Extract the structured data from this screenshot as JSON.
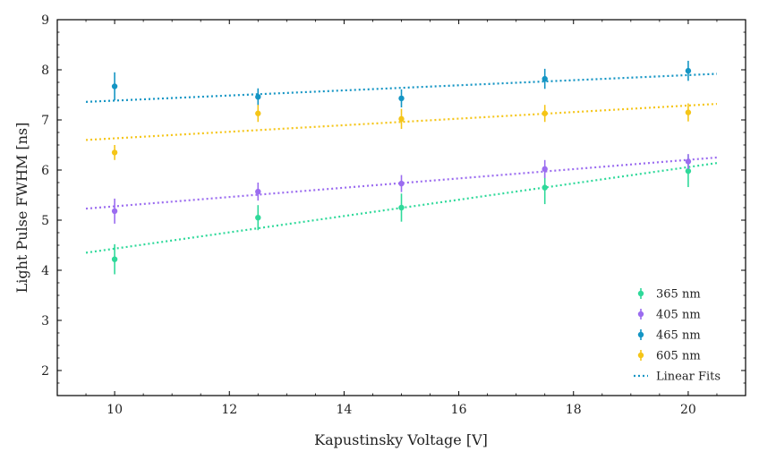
{
  "chart_data": {
    "type": "scatter",
    "title": "",
    "xlabel": "Kapustinsky Voltage [V]",
    "ylabel": "Light Pulse FWHM [ns]",
    "xlim": [
      9.0,
      21.0
    ],
    "ylim": [
      1.5,
      9.0
    ],
    "xticks": [
      10,
      12,
      14,
      16,
      18,
      20
    ],
    "yticks": [
      2,
      3,
      4,
      5,
      6,
      7,
      8,
      9
    ],
    "grid": false,
    "legend_position": "lower-right",
    "series": [
      {
        "name": "365 nm",
        "color": "#2fd99a",
        "x": [
          10,
          12.5,
          15,
          17.5,
          20
        ],
        "y": [
          4.22,
          5.05,
          5.25,
          5.65,
          5.98
        ],
        "yerr": [
          0.3,
          0.25,
          0.28,
          0.33,
          0.32
        ],
        "fit": {
          "x": [
            9.5,
            20.5
          ],
          "y": [
            4.35,
            6.14
          ]
        }
      },
      {
        "name": "405 nm",
        "color": "#9b6cf0",
        "x": [
          10,
          12.5,
          15,
          17.5,
          20
        ],
        "y": [
          5.18,
          5.57,
          5.73,
          6.02,
          6.17
        ],
        "yerr": [
          0.25,
          0.18,
          0.17,
          0.18,
          0.15
        ],
        "fit": {
          "x": [
            9.5,
            20.5
          ],
          "y": [
            5.23,
            6.25
          ]
        }
      },
      {
        "name": "465 nm",
        "color": "#1495c4",
        "x": [
          10,
          12.5,
          15,
          17.5,
          20
        ],
        "y": [
          7.67,
          7.46,
          7.43,
          7.82,
          7.98
        ],
        "yerr": [
          0.28,
          0.17,
          0.18,
          0.2,
          0.2
        ],
        "fit": {
          "x": [
            9.5,
            20.5
          ],
          "y": [
            7.36,
            7.92
          ]
        }
      },
      {
        "name": "605 nm",
        "color": "#f5c518",
        "x": [
          10,
          12.5,
          15,
          17.5,
          20
        ],
        "y": [
          6.35,
          7.13,
          7.02,
          7.13,
          7.15
        ],
        "yerr": [
          0.15,
          0.17,
          0.2,
          0.17,
          0.18
        ],
        "fit": {
          "x": [
            9.5,
            20.5
          ],
          "y": [
            6.6,
            7.32
          ]
        }
      }
    ],
    "fit_legend_label": "Linear Fits",
    "fit_legend_color": "#1495c4"
  }
}
